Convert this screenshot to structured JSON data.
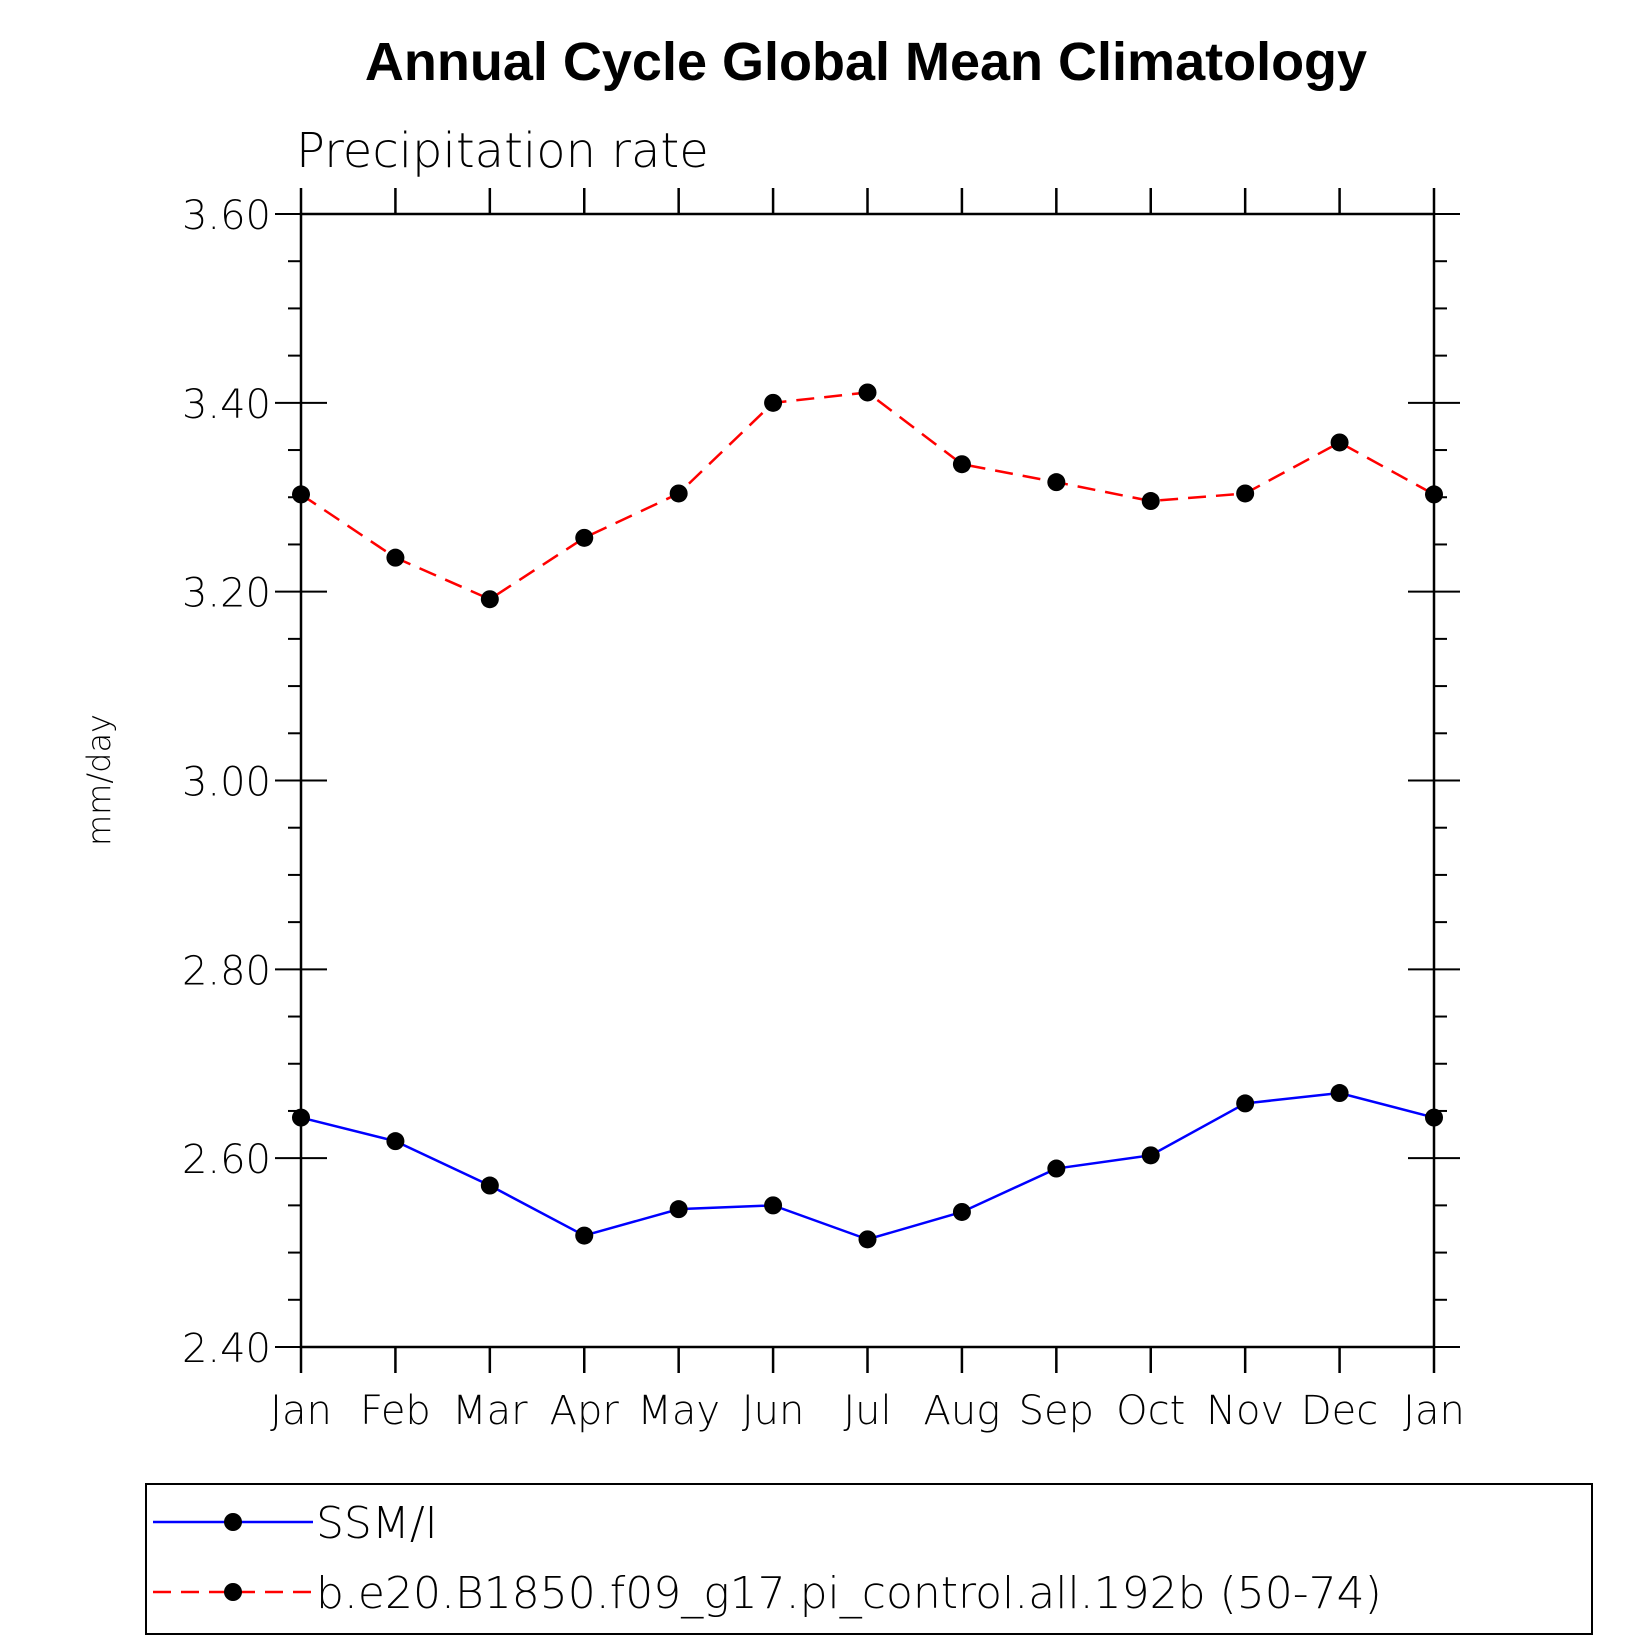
{
  "chart_data": {
    "type": "line",
    "title": "Annual Cycle Global Mean Climatology",
    "subtitle": "Precipitation rate",
    "ylabel": "mm/day",
    "xlabel": "",
    "categories": [
      "Jan",
      "Feb",
      "Mar",
      "Apr",
      "May",
      "Jun",
      "Jul",
      "Aug",
      "Sep",
      "Oct",
      "Nov",
      "Dec",
      "Jan"
    ],
    "ylim": [
      2.4,
      3.6
    ],
    "yticks": [
      "2.40",
      "2.60",
      "2.80",
      "3.00",
      "3.20",
      "3.40",
      "3.60"
    ],
    "grid": false,
    "legend_position": "bottom",
    "series": [
      {
        "name": "SSM/I",
        "color": "#0000ff",
        "line_style": "solid",
        "marker": "filled-circle",
        "values": [
          2.643,
          2.618,
          2.571,
          2.518,
          2.546,
          2.55,
          2.514,
          2.543,
          2.589,
          2.603,
          2.658,
          2.669,
          2.643
        ]
      },
      {
        "name": "b.e20.B1850.f09_g17.pi_control.all.192b (50-74)",
        "color": "#ff0000",
        "line_style": "dashed",
        "marker": "filled-circle",
        "values": [
          3.303,
          3.236,
          3.192,
          3.257,
          3.304,
          3.4,
          3.411,
          3.335,
          3.316,
          3.296,
          3.304,
          3.358,
          3.303
        ]
      }
    ]
  }
}
